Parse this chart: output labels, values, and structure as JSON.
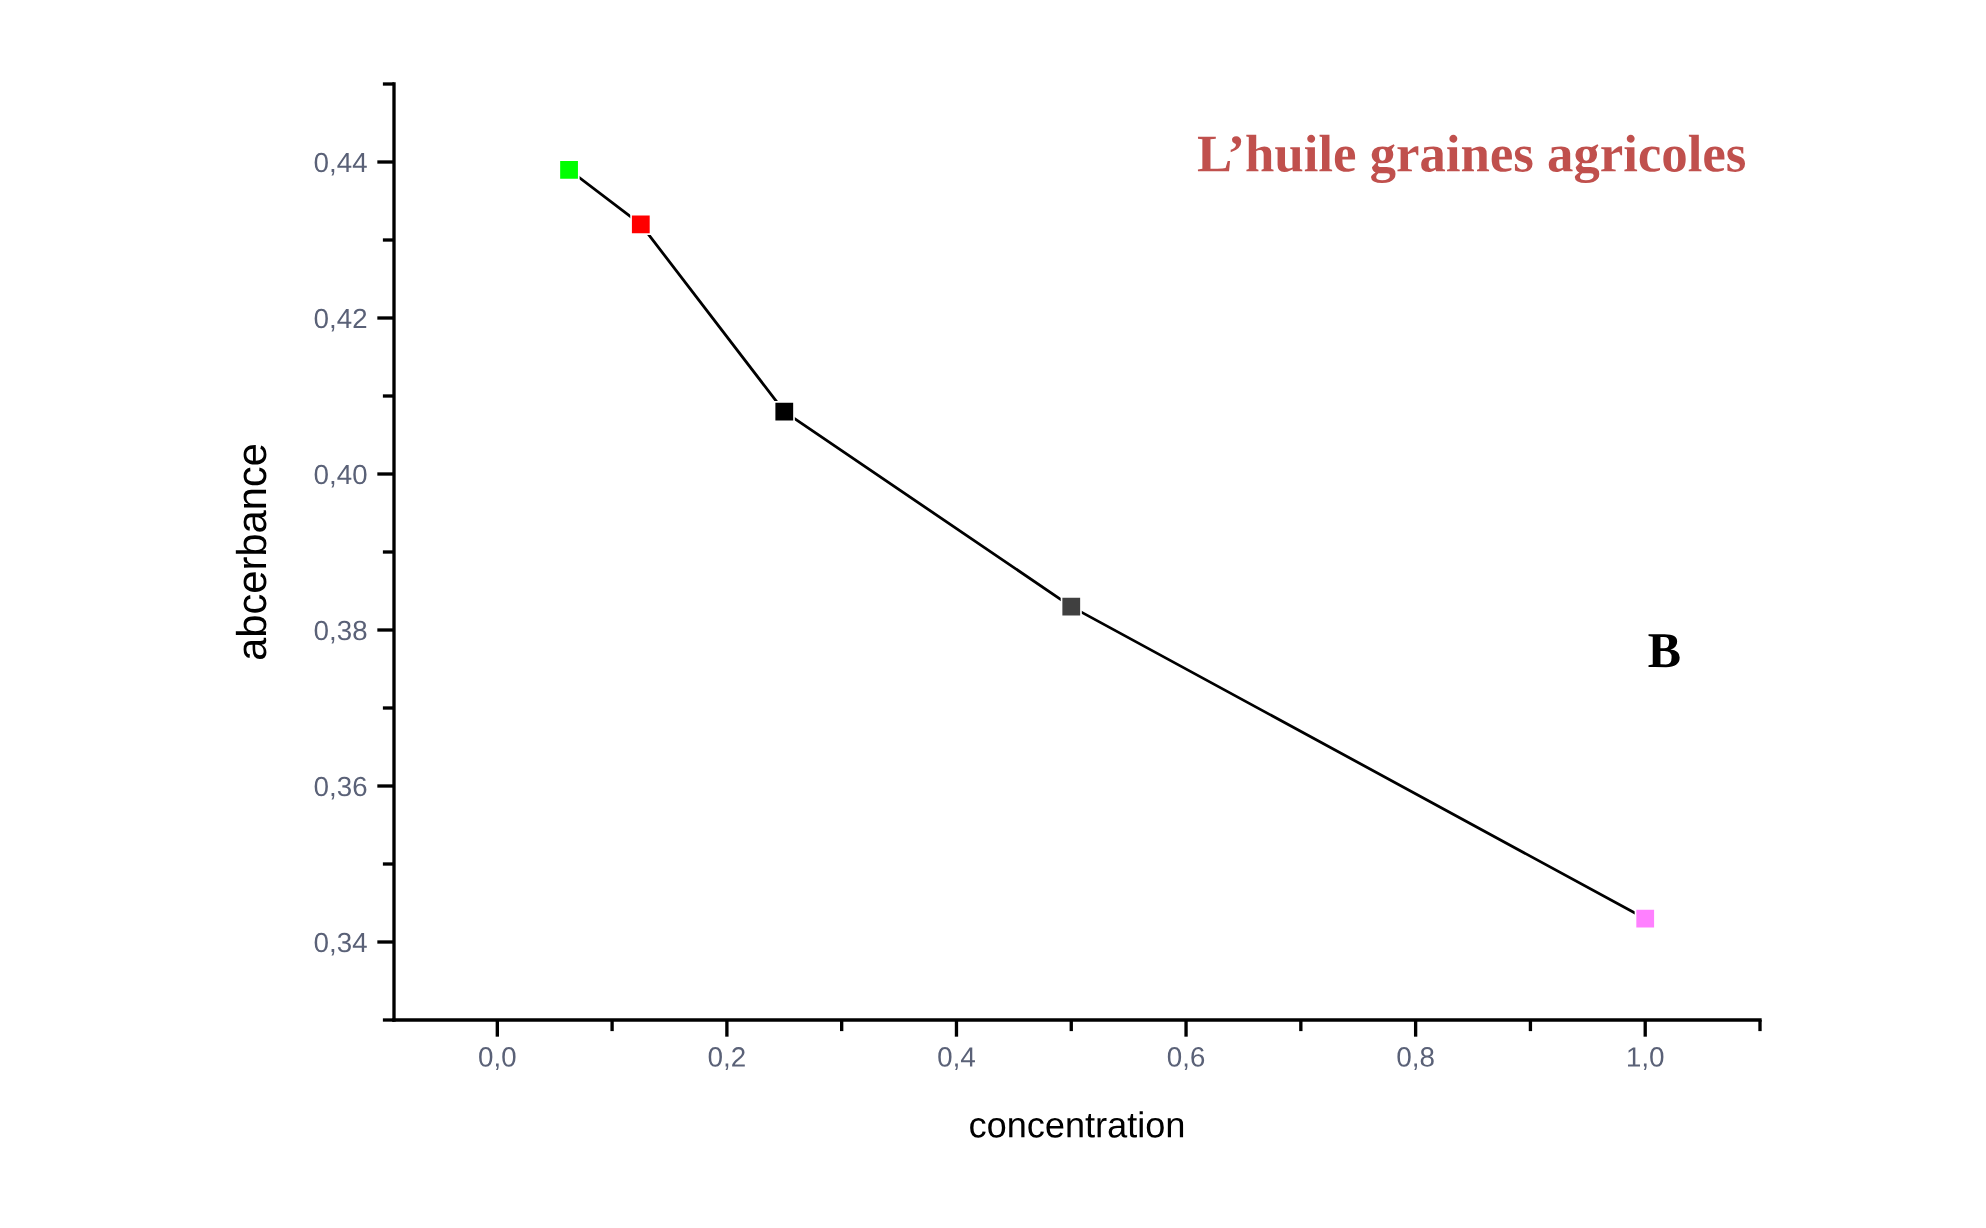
{
  "chart_data": {
    "type": "line",
    "title": "L’huile graines agricoles",
    "annotations": [
      "B"
    ],
    "xlabel": "concentration",
    "ylabel": "abcerbance",
    "x": [
      0.0625,
      0.125,
      0.25,
      0.5,
      1.0
    ],
    "series": [
      {
        "color": "#000000",
        "colors": [
          "#00ff00",
          "#ff0000",
          "#000000",
          "#404040",
          "#ff80ff"
        ],
        "values": [
          0.439,
          0.432,
          0.408,
          0.383,
          0.343
        ]
      }
    ],
    "marker": "square",
    "line_style": "solid",
    "grid": false,
    "xlim": [
      -0.09,
      1.1
    ],
    "ylim": [
      0.33,
      0.45
    ],
    "xticks": [
      {
        "value": 0.0,
        "label": "0,0"
      },
      {
        "value": 0.2,
        "label": "0,2"
      },
      {
        "value": 0.4,
        "label": "0,4"
      },
      {
        "value": 0.6,
        "label": "0,6"
      },
      {
        "value": 0.8,
        "label": "0,8"
      },
      {
        "value": 1.0,
        "label": "1,0"
      }
    ],
    "yticks": [
      {
        "value": 0.34,
        "label": "0,34"
      },
      {
        "value": 0.36,
        "label": "0,36"
      },
      {
        "value": 0.38,
        "label": "0,38"
      },
      {
        "value": 0.4,
        "label": "0,40"
      },
      {
        "value": 0.42,
        "label": "0,42"
      },
      {
        "value": 0.44,
        "label": "0,44"
      }
    ]
  }
}
